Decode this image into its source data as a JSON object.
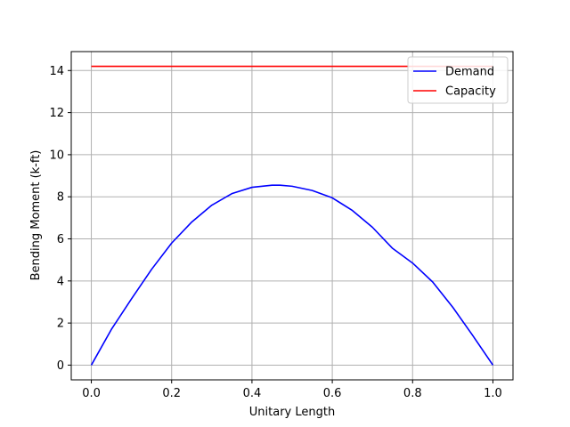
{
  "chart_data": {
    "type": "line",
    "title": "",
    "xlabel": "Unitary Length",
    "ylabel": "Bending Moment (k-ft)",
    "xlim": [
      -0.05,
      1.05
    ],
    "ylim": [
      -0.7,
      14.9
    ],
    "xticks": [
      0.0,
      0.2,
      0.4,
      0.6,
      0.8,
      1.0
    ],
    "xtick_labels": [
      "0.0",
      "0.2",
      "0.4",
      "0.6",
      "0.8",
      "1.0"
    ],
    "yticks": [
      0,
      2,
      4,
      6,
      8,
      10,
      12,
      14
    ],
    "ytick_labels": [
      "0",
      "2",
      "4",
      "6",
      "8",
      "10",
      "12",
      "14"
    ],
    "grid": true,
    "legend_position": "upper right",
    "series": [
      {
        "name": "Demand",
        "color": "#0000ff",
        "x": [
          0.0,
          0.05,
          0.1,
          0.15,
          0.2,
          0.25,
          0.3,
          0.35,
          0.4,
          0.45,
          0.47,
          0.5,
          0.55,
          0.6,
          0.65,
          0.7,
          0.75,
          0.8,
          0.85,
          0.9,
          0.95,
          1.0
        ],
        "y": [
          0.0,
          1.7,
          3.15,
          4.55,
          5.8,
          6.8,
          7.6,
          8.15,
          8.45,
          8.55,
          8.55,
          8.5,
          8.3,
          7.95,
          7.35,
          6.55,
          5.55,
          4.85,
          3.95,
          2.75,
          1.4,
          0.0
        ]
      },
      {
        "name": "Capacity",
        "color": "#ff0000",
        "x": [
          0.0,
          1.0
        ],
        "y": [
          14.2,
          14.2
        ]
      }
    ]
  }
}
